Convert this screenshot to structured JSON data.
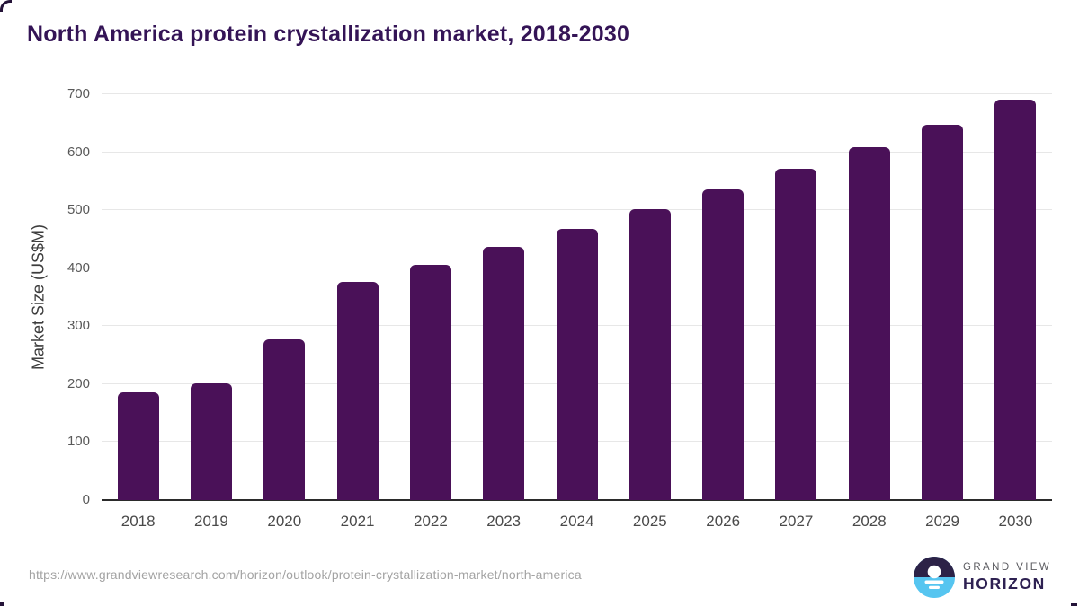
{
  "title": "North America protein crystallization market, 2018-2030",
  "footer": {
    "url": "https://www.grandviewresearch.com/horizon/outlook/protein-crystallization-market/north-america",
    "logo": {
      "line1": "GRAND VIEW",
      "line2": "HORIZON",
      "icon": "horizon-sun-icon"
    }
  },
  "colors": {
    "bar": "#4a1158",
    "title": "#341456",
    "gridline": "#e7e7e7",
    "baseline": "#2b2b2b",
    "y_tick_text": "#595959",
    "x_tick_text": "#4a4a4a",
    "y_axis_title_text": "#3d3d3d",
    "url_text": "#a3a3a3",
    "logo_dark": "#2c2247",
    "logo_blue": "#56c5f0",
    "logo_line1_text": "#5a5a5f",
    "logo_line2_text": "#2e2152"
  },
  "chart_data": {
    "type": "bar",
    "title": "North America protein crystallization market, 2018-2030",
    "categories": [
      "2018",
      "2019",
      "2020",
      "2021",
      "2022",
      "2023",
      "2024",
      "2025",
      "2026",
      "2027",
      "2028",
      "2029",
      "2030"
    ],
    "values": [
      186,
      201,
      277,
      376,
      406,
      437,
      468,
      502,
      536,
      572,
      609,
      648,
      690
    ],
    "xlabel": "",
    "ylabel": "Market Size (US$M)",
    "ylim": [
      0,
      700
    ],
    "yticks": [
      0,
      100,
      200,
      300,
      400,
      500,
      600,
      700
    ],
    "grid": "horizontal",
    "legend": "none",
    "bar_color": "#4a1158"
  }
}
